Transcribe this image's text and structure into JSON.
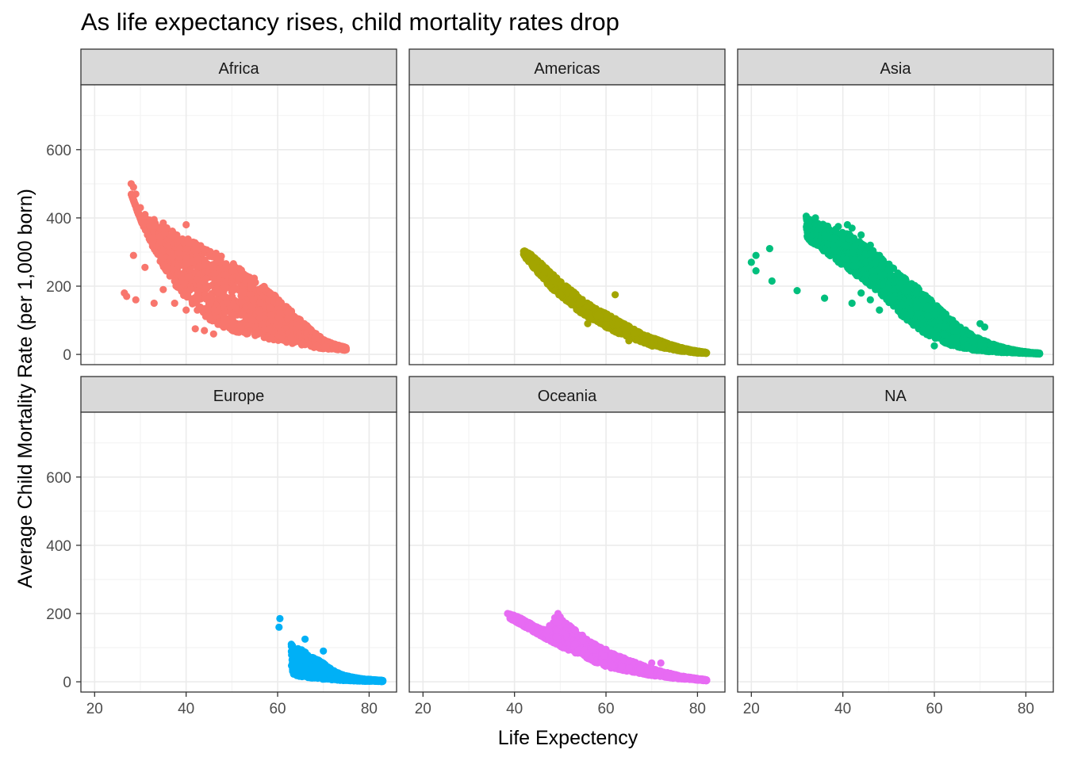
{
  "chart_data": {
    "type": "scatter",
    "title": "As life expectancy rises, child mortality rates drop",
    "xlabel": "Life Expectency",
    "ylabel": "Average Child Mortality Rate (per 1,000 born)",
    "xlim": [
      17,
      86
    ],
    "ylim": [
      -30,
      790
    ],
    "x_ticks": [
      20,
      40,
      60,
      80
    ],
    "y_ticks": [
      0,
      200,
      400,
      600
    ],
    "grid": true,
    "legend": "none",
    "facets": [
      {
        "name": "Africa",
        "color": "#F8766D",
        "bands": [
          [
            28,
            470,
            470
          ],
          [
            30,
            395,
            400
          ],
          [
            32,
            335,
            395
          ],
          [
            34,
            280,
            380
          ],
          [
            36,
            235,
            370
          ],
          [
            38,
            195,
            355
          ],
          [
            40,
            165,
            345
          ],
          [
            42,
            135,
            335
          ],
          [
            44,
            110,
            320
          ],
          [
            46,
            95,
            300
          ],
          [
            48,
            80,
            290
          ],
          [
            50,
            70,
            270
          ],
          [
            52,
            60,
            250
          ],
          [
            54,
            55,
            235
          ],
          [
            56,
            50,
            210
          ],
          [
            58,
            45,
            190
          ],
          [
            60,
            40,
            165
          ],
          [
            62,
            35,
            140
          ],
          [
            64,
            30,
            115
          ],
          [
            66,
            25,
            90
          ],
          [
            68,
            20,
            65
          ],
          [
            70,
            17,
            45
          ],
          [
            72,
            15,
            32
          ],
          [
            74,
            13,
            25
          ],
          [
            75,
            12,
            20
          ]
        ],
        "points": [
          [
            28,
            500
          ],
          [
            28.5,
            490
          ],
          [
            29,
            470
          ],
          [
            30,
            430
          ],
          [
            31,
            410
          ],
          [
            33,
            395
          ],
          [
            35,
            385
          ],
          [
            40,
            380
          ],
          [
            28.5,
            290
          ],
          [
            31,
            255
          ],
          [
            26.5,
            180
          ],
          [
            27,
            170
          ],
          [
            29,
            160
          ],
          [
            33,
            150
          ],
          [
            35,
            190
          ],
          [
            37.5,
            150
          ],
          [
            40,
            130
          ],
          [
            42,
            75
          ],
          [
            44,
            70
          ],
          [
            46,
            60
          ]
        ]
      },
      {
        "name": "Americas",
        "color": "#A3A500",
        "bands": [
          [
            42,
            290,
            305
          ],
          [
            44,
            255,
            290
          ],
          [
            46,
            225,
            265
          ],
          [
            48,
            195,
            240
          ],
          [
            50,
            170,
            215
          ],
          [
            52,
            150,
            195
          ],
          [
            54,
            125,
            170
          ],
          [
            56,
            110,
            150
          ],
          [
            58,
            95,
            135
          ],
          [
            60,
            80,
            120
          ],
          [
            62,
            65,
            105
          ],
          [
            64,
            55,
            90
          ],
          [
            66,
            45,
            75
          ],
          [
            68,
            35,
            60
          ],
          [
            70,
            25,
            50
          ],
          [
            72,
            20,
            40
          ],
          [
            74,
            15,
            30
          ],
          [
            76,
            10,
            22
          ],
          [
            78,
            7,
            15
          ],
          [
            80,
            4,
            10
          ],
          [
            82,
            3,
            6
          ]
        ],
        "points": [
          [
            42,
            302
          ],
          [
            43,
            295
          ],
          [
            62,
            175
          ],
          [
            56,
            90
          ],
          [
            60,
            85
          ],
          [
            65,
            40
          ],
          [
            70,
            30
          ],
          [
            75,
            20
          ]
        ]
      },
      {
        "name": "Asia",
        "color": "#00BF7D",
        "bands": [
          [
            32,
            340,
            400
          ],
          [
            34,
            320,
            390
          ],
          [
            36,
            300,
            380
          ],
          [
            38,
            280,
            370
          ],
          [
            40,
            260,
            360
          ],
          [
            42,
            240,
            350
          ],
          [
            44,
            220,
            330
          ],
          [
            46,
            200,
            310
          ],
          [
            48,
            180,
            290
          ],
          [
            50,
            150,
            270
          ],
          [
            52,
            120,
            240
          ],
          [
            54,
            100,
            220
          ],
          [
            56,
            80,
            200
          ],
          [
            58,
            60,
            175
          ],
          [
            60,
            45,
            150
          ],
          [
            62,
            35,
            125
          ],
          [
            64,
            25,
            100
          ],
          [
            66,
            18,
            80
          ],
          [
            68,
            13,
            60
          ],
          [
            70,
            10,
            45
          ],
          [
            72,
            8,
            35
          ],
          [
            74,
            6,
            25
          ],
          [
            76,
            5,
            18
          ],
          [
            78,
            4,
            12
          ],
          [
            80,
            3,
            8
          ],
          [
            82,
            2,
            5
          ],
          [
            83,
            1,
            4
          ]
        ],
        "points": [
          [
            32,
            405
          ],
          [
            34,
            400
          ],
          [
            39,
            375
          ],
          [
            41,
            380
          ],
          [
            42,
            370
          ],
          [
            44,
            350
          ],
          [
            46,
            320
          ],
          [
            48,
            290
          ],
          [
            20,
            270
          ],
          [
            21,
            290
          ],
          [
            24,
            310
          ],
          [
            21,
            245
          ],
          [
            24.5,
            215
          ],
          [
            30,
            187
          ],
          [
            36,
            165
          ],
          [
            42,
            150
          ],
          [
            44,
            180
          ],
          [
            46,
            160
          ],
          [
            48,
            130
          ],
          [
            70,
            90
          ],
          [
            71,
            80
          ],
          [
            60,
            25
          ]
        ]
      },
      {
        "name": "Europe",
        "color": "#00B0F6",
        "bands": [
          [
            63,
            20,
            110
          ],
          [
            64,
            18,
            100
          ],
          [
            65,
            16,
            95
          ],
          [
            66,
            14,
            90
          ],
          [
            67,
            12,
            75
          ],
          [
            68,
            10,
            70
          ],
          [
            69,
            9,
            65
          ],
          [
            70,
            8,
            55
          ],
          [
            71,
            7,
            45
          ],
          [
            72,
            6,
            35
          ],
          [
            73,
            5,
            28
          ],
          [
            74,
            4,
            22
          ],
          [
            75,
            4,
            18
          ],
          [
            76,
            3,
            15
          ],
          [
            77,
            3,
            12
          ],
          [
            78,
            2,
            10
          ],
          [
            79,
            2,
            8
          ],
          [
            80,
            2,
            7
          ],
          [
            81,
            2,
            6
          ],
          [
            82,
            1,
            5
          ],
          [
            83,
            1,
            4
          ]
        ],
        "points": [
          [
            60.5,
            185
          ],
          [
            60.3,
            160
          ],
          [
            66,
            125
          ],
          [
            63,
            110
          ],
          [
            70,
            90
          ],
          [
            64,
            50
          ],
          [
            67,
            35
          ],
          [
            69,
            30
          ]
        ]
      },
      {
        "name": "Oceania",
        "color": "#E76BF3",
        "bands": [
          [
            39,
            185,
            200
          ],
          [
            41,
            170,
            190
          ],
          [
            43,
            155,
            175
          ],
          [
            45,
            140,
            160
          ],
          [
            47,
            125,
            150
          ],
          [
            49,
            110,
            195
          ],
          [
            51,
            95,
            175
          ],
          [
            53,
            85,
            155
          ],
          [
            55,
            75,
            135
          ],
          [
            57,
            60,
            115
          ],
          [
            59,
            50,
            100
          ],
          [
            61,
            40,
            85
          ],
          [
            63,
            35,
            75
          ],
          [
            65,
            30,
            65
          ],
          [
            67,
            25,
            55
          ],
          [
            69,
            20,
            45
          ],
          [
            71,
            16,
            35
          ],
          [
            73,
            13,
            28
          ],
          [
            75,
            10,
            22
          ],
          [
            77,
            8,
            16
          ],
          [
            79,
            6,
            12
          ],
          [
            81,
            4,
            8
          ],
          [
            82,
            3,
            6
          ]
        ],
        "points": [
          [
            38.5,
            200
          ],
          [
            39,
            195
          ],
          [
            49.5,
            200
          ],
          [
            50,
            190
          ],
          [
            55,
            120
          ],
          [
            60,
            95
          ],
          [
            70,
            55
          ],
          [
            72,
            55
          ],
          [
            65,
            40
          ]
        ]
      },
      {
        "name": "NA",
        "color": "#F8766D",
        "bands": [],
        "points": []
      }
    ]
  }
}
